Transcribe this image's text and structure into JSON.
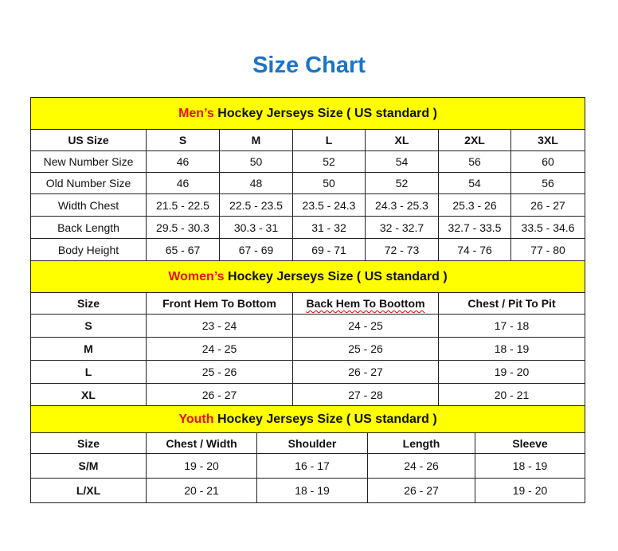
{
  "title": "Size Chart",
  "men": {
    "title_prefix": "Men’s",
    "title_rest": " Hockey Jerseys Size ( US standard )",
    "columns": [
      "US Size",
      "S",
      "M",
      "L",
      "XL",
      "2XL",
      "3XL"
    ],
    "rows": [
      [
        "New Number Size",
        "46",
        "50",
        "52",
        "54",
        "56",
        "60"
      ],
      [
        "Old Number Size",
        "46",
        "48",
        "50",
        "52",
        "54",
        "56"
      ],
      [
        "Width Chest",
        "21.5 - 22.5",
        "22.5 - 23.5",
        "23.5 - 24.3",
        "24.3 - 25.3",
        "25.3 - 26",
        "26 - 27"
      ],
      [
        "Back Length",
        "29.5 - 30.3",
        "30.3 - 31",
        "31 - 32",
        "32 - 32.7",
        "32.7 - 33.5",
        "33.5 - 34.6"
      ],
      [
        "Body Height",
        "65 - 67",
        "67 - 69",
        "69 - 71",
        "72 - 73",
        "74 - 76",
        "77 - 80"
      ]
    ]
  },
  "women": {
    "title_prefix": "Women’s",
    "title_rest": " Hockey Jerseys Size ( US standard )",
    "columns": [
      "Size",
      "Front Hem To Bottom",
      "Back Hem To Boottom",
      "Chest / Pit To Pit"
    ],
    "rows": [
      [
        "S",
        "23 - 24",
        "24 - 25",
        "17 - 18"
      ],
      [
        "M",
        "24 - 25",
        "25 - 26",
        "18 - 19"
      ],
      [
        "L",
        "25 - 26",
        "26 - 27",
        "19 - 20"
      ],
      [
        "XL",
        "26 - 27",
        "27 - 28",
        "20 - 21"
      ]
    ]
  },
  "youth": {
    "title_prefix": "Youth",
    "title_rest": " Hockey Jerseys Size ( US standard )",
    "columns": [
      "Size",
      "Chest / Width",
      "Shoulder",
      "Length",
      "Sleeve"
    ],
    "rows": [
      [
        "S/M",
        "19 - 20",
        "16 - 17",
        "24 - 26",
        "18 - 19"
      ],
      [
        "L/XL",
        "20 - 21",
        "18 - 19",
        "26 - 27",
        "19 - 20"
      ]
    ]
  },
  "colors": {
    "title": "#1b74c5",
    "header_bg": "#ffff00",
    "accent_red": "#e81010"
  }
}
